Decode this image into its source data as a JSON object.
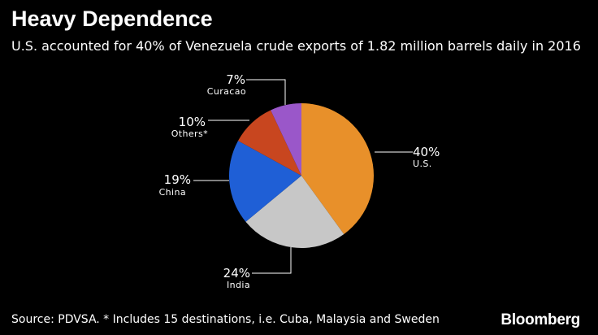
{
  "header": {
    "title": "Heavy Dependence",
    "subtitle": "U.S. accounted for 40% of Venezuela crude exports of 1.82 million barrels daily in 2016"
  },
  "footer": {
    "source": "Source: PDVSA. * Includes 15 destinations, i.e. Cuba, Malaysia and Sweden",
    "brand": "Bloomberg"
  },
  "chart_data": {
    "type": "pie",
    "title": "Heavy Dependence",
    "subtitle": "U.S. accounted for 40% of Venezuela crude exports of 1.82 million barrels daily in 2016",
    "start": "12 o'clock",
    "direction": "clockwise",
    "slices": [
      {
        "label": "U.S.",
        "value": 40,
        "pct_label": "40%",
        "color": "#E8902A"
      },
      {
        "label": "India",
        "value": 24,
        "pct_label": "24%",
        "color": "#C7C7C7"
      },
      {
        "label": "China",
        "value": 19,
        "pct_label": "19%",
        "color": "#1F5FD6"
      },
      {
        "label": "Others*",
        "value": 10,
        "pct_label": "10%",
        "color": "#C8461F"
      },
      {
        "label": "Curacao",
        "value": 7,
        "pct_label": "7%",
        "color": "#9A57C9"
      }
    ]
  }
}
